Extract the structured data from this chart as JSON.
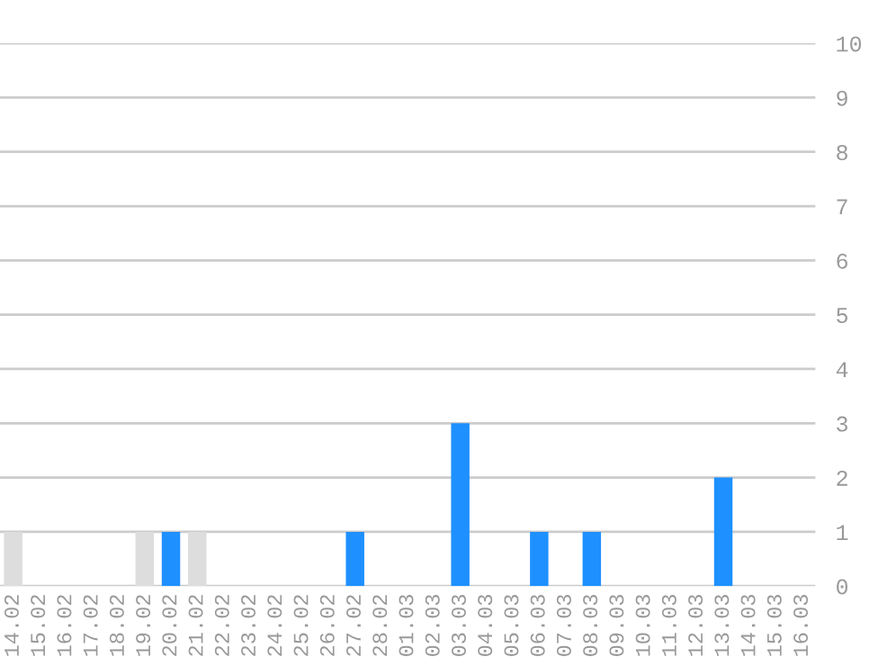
{
  "chart_data": {
    "type": "bar",
    "categories": [
      "14.02",
      "15.02",
      "16.02",
      "17.02",
      "18.02",
      "19.02",
      "20.02",
      "21.02",
      "22.02",
      "23.02",
      "24.02",
      "25.02",
      "26.02",
      "27.02",
      "28.02",
      "01.03",
      "02.03",
      "03.03",
      "04.03",
      "05.03",
      "06.03",
      "07.03",
      "08.03",
      "09.03",
      "10.03",
      "11.03",
      "12.03",
      "13.03",
      "14.03",
      "15.03",
      "16.03"
    ],
    "values": [
      1,
      0,
      0,
      0,
      0,
      1,
      1,
      1,
      0,
      0,
      0,
      0,
      0,
      1,
      0,
      0,
      0,
      3,
      0,
      0,
      1,
      0,
      1,
      0,
      0,
      0,
      0,
      2,
      0,
      0,
      0
    ],
    "colors": [
      "#dddddd",
      "#1e90ff",
      "#1e90ff",
      "#1e90ff",
      "#1e90ff",
      "#dddddd",
      "#1e90ff",
      "#dddddd",
      "#1e90ff",
      "#1e90ff",
      "#1e90ff",
      "#1e90ff",
      "#1e90ff",
      "#1e90ff",
      "#1e90ff",
      "#1e90ff",
      "#1e90ff",
      "#1e90ff",
      "#1e90ff",
      "#1e90ff",
      "#1e90ff",
      "#1e90ff",
      "#1e90ff",
      "#1e90ff",
      "#1e90ff",
      "#1e90ff",
      "#1e90ff",
      "#1e90ff",
      "#1e90ff",
      "#1e90ff",
      "#1e90ff"
    ],
    "ylim": [
      0,
      10
    ],
    "yticks": [
      0,
      1,
      2,
      3,
      4,
      5,
      6,
      7,
      8,
      9,
      10
    ],
    "grid": "y"
  }
}
